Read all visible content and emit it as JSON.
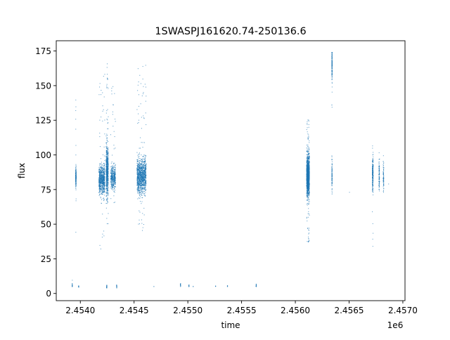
{
  "chart_data": {
    "type": "scatter",
    "title": "1SWASPJ161620.74-250136.6",
    "xlabel": "time",
    "ylabel": "flux",
    "x_offset_label": "1e6",
    "xlim": [
      2453776,
      2457020
    ],
    "ylim": [
      -5.2,
      182.4
    ],
    "xticks": [
      2454000,
      2454500,
      2455000,
      2455500,
      2456000,
      2456500,
      2457000
    ],
    "xtick_labels": [
      "2.4540",
      "2.4545",
      "2.4550",
      "2.4555",
      "2.4560",
      "2.4565",
      "2.4570"
    ],
    "yticks": [
      0,
      25,
      50,
      75,
      100,
      125,
      150,
      175
    ],
    "ytick_labels": [
      "0",
      "25",
      "50",
      "75",
      "100",
      "125",
      "150",
      "175"
    ],
    "grid": false,
    "marker_color": "#1f77b4",
    "clusters": [
      {
        "time": 2453959,
        "time_width": 4,
        "flux": 84,
        "flux_sd": 3.5,
        "count": 220,
        "outlier_range": [
          33,
          143
        ]
      },
      {
        "time": 2453925,
        "time_width": 2,
        "flux": 5.5,
        "flux_sd": 0.6,
        "count": 15,
        "outlier_range": [
          5,
          14
        ]
      },
      {
        "time": 2453985,
        "time_width": 2,
        "flux": 5,
        "flux_sd": 0.5,
        "count": 15,
        "outlier_range": [
          4,
          6
        ]
      },
      {
        "time": 2454200,
        "time_width": 55,
        "flux": 82,
        "flux_sd": 5,
        "count": 700,
        "outlier_range": [
          30,
          160
        ]
      },
      {
        "time": 2454250,
        "time_width": 20,
        "flux": 88,
        "flux_sd": 9,
        "count": 600,
        "outlier_range": [
          50,
          166
        ]
      },
      {
        "time": 2454305,
        "time_width": 45,
        "flux": 84,
        "flux_sd": 4,
        "count": 400,
        "outlier_range": [
          64,
          152
        ]
      },
      {
        "time": 2454246,
        "time_width": 3,
        "flux": 5,
        "flux_sd": 0.7,
        "count": 20,
        "outlier_range": [
          4,
          6
        ]
      },
      {
        "time": 2454338,
        "time_width": 3,
        "flux": 5,
        "flux_sd": 0.6,
        "count": 15,
        "outlier_range": [
          4,
          6
        ]
      },
      {
        "time": 2454570,
        "time_width": 85,
        "flux": 85,
        "flux_sd": 6,
        "count": 1100,
        "outlier_range": [
          44,
          165
        ]
      },
      {
        "time": 2454684,
        "time_width": 1,
        "flux": 5,
        "flux_sd": 0.3,
        "count": 2,
        "outlier_range": [
          5,
          5
        ]
      },
      {
        "time": 2454932,
        "time_width": 3,
        "flux": 6,
        "flux_sd": 0.6,
        "count": 15,
        "outlier_range": [
          5,
          7
        ]
      },
      {
        "time": 2455010,
        "time_width": 3,
        "flux": 5.5,
        "flux_sd": 0.5,
        "count": 12,
        "outlier_range": [
          5,
          6
        ]
      },
      {
        "time": 2455050,
        "time_width": 1,
        "flux": 5,
        "flux_sd": 0.3,
        "count": 3,
        "outlier_range": [
          5,
          5
        ]
      },
      {
        "time": 2455258,
        "time_width": 2,
        "flux": 5.5,
        "flux_sd": 0.4,
        "count": 6,
        "outlier_range": [
          5,
          6
        ]
      },
      {
        "time": 2455369,
        "time_width": 2,
        "flux": 5,
        "flux_sd": 0.4,
        "count": 6,
        "outlier_range": [
          5,
          6
        ]
      },
      {
        "time": 2455636,
        "time_width": 3,
        "flux": 5.5,
        "flux_sd": 0.6,
        "count": 15,
        "outlier_range": [
          4,
          7
        ]
      },
      {
        "time": 2456118,
        "time_width": 26,
        "flux": 85,
        "flux_sd": 7,
        "count": 1400,
        "outlier_range": [
          36,
          128
        ]
      },
      {
        "time": 2456341,
        "time_width": 3,
        "flux": 165,
        "flux_sd": 5,
        "count": 160,
        "outlier_range": [
          134,
          174
        ]
      },
      {
        "time": 2456341,
        "time_width": 3,
        "flux": 85,
        "flux_sd": 5,
        "count": 90,
        "outlier_range": [
          70,
          100
        ]
      },
      {
        "time": 2456504,
        "time_width": 1,
        "flux": 73,
        "flux_sd": 0.2,
        "count": 1,
        "outlier_range": [
          73,
          73
        ]
      },
      {
        "time": 2456720,
        "time_width": 8,
        "flux": 85,
        "flux_sd": 6,
        "count": 220,
        "outlier_range": [
          24,
          112
        ]
      },
      {
        "time": 2456780,
        "time_width": 6,
        "flux": 85,
        "flux_sd": 5,
        "count": 90,
        "outlier_range": [
          70,
          108
        ]
      },
      {
        "time": 2456820,
        "time_width": 6,
        "flux": 84,
        "flux_sd": 5,
        "count": 70,
        "outlier_range": [
          71,
          108
        ]
      },
      {
        "time": 2456868,
        "time_width": 2,
        "flux": 79,
        "flux_sd": 0.5,
        "count": 1,
        "outlier_range": [
          79,
          79
        ]
      }
    ]
  }
}
